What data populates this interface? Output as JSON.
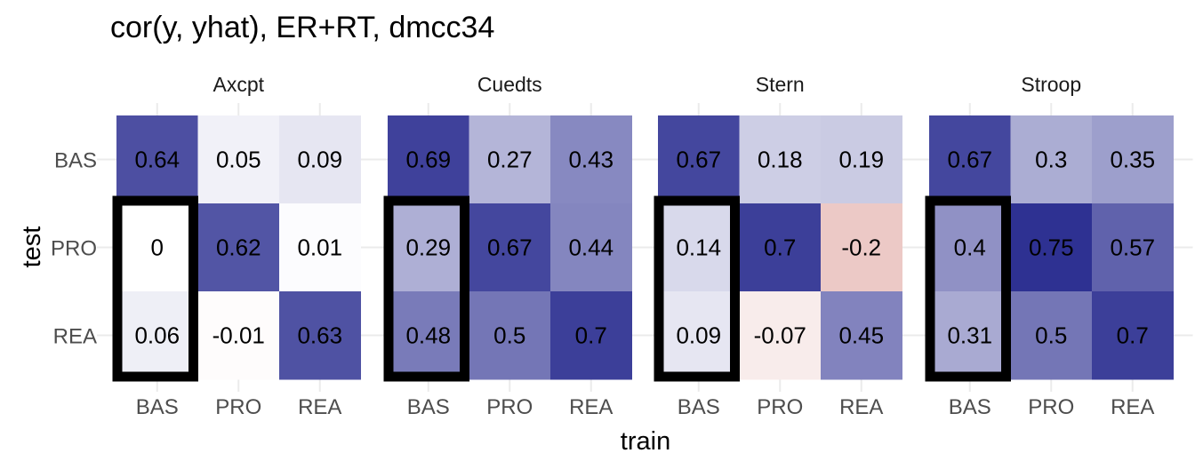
{
  "chart_data": {
    "type": "heatmap",
    "title": "cor(y, yhat), ER+RT, dmcc34",
    "xlabel": "train",
    "ylabel": "test",
    "x_categories": [
      "BAS",
      "PRO",
      "REA"
    ],
    "y_categories": [
      "BAS",
      "PRO",
      "REA"
    ],
    "color_range": [
      -0.75,
      0.75
    ],
    "colors": {
      "high": "#2e3192",
      "mid": "#ffffff",
      "low": "#b7332a"
    },
    "highlight": {
      "column": "BAS",
      "rows": [
        "PRO",
        "REA"
      ]
    },
    "panels": [
      {
        "name": "Axcpt",
        "values": [
          [
            0.64,
            0.05,
            0.09
          ],
          [
            0,
            0.62,
            0.01
          ],
          [
            0.06,
            -0.01,
            0.63
          ]
        ],
        "labels": [
          [
            "0.64",
            "0.05",
            "0.09"
          ],
          [
            "0",
            "0.62",
            "0.01"
          ],
          [
            "0.06",
            "-0.01",
            "0.63"
          ]
        ]
      },
      {
        "name": "Cuedts",
        "values": [
          [
            0.69,
            0.27,
            0.43
          ],
          [
            0.29,
            0.67,
            0.44
          ],
          [
            0.48,
            0.5,
            0.7
          ]
        ],
        "labels": [
          [
            "0.69",
            "0.27",
            "0.43"
          ],
          [
            "0.29",
            "0.67",
            "0.44"
          ],
          [
            "0.48",
            "0.5",
            "0.7"
          ]
        ]
      },
      {
        "name": "Stern",
        "values": [
          [
            0.67,
            0.18,
            0.19
          ],
          [
            0.14,
            0.7,
            -0.2
          ],
          [
            0.09,
            -0.07,
            0.45
          ]
        ],
        "labels": [
          [
            "0.67",
            "0.18",
            "0.19"
          ],
          [
            "0.14",
            "0.7",
            "-0.2"
          ],
          [
            "0.09",
            "-0.07",
            "0.45"
          ]
        ]
      },
      {
        "name": "Stroop",
        "values": [
          [
            0.67,
            0.3,
            0.35
          ],
          [
            0.4,
            0.75,
            0.57
          ],
          [
            0.31,
            0.5,
            0.7
          ]
        ],
        "labels": [
          [
            "0.67",
            "0.3",
            "0.35"
          ],
          [
            "0.4",
            "0.75",
            "0.57"
          ],
          [
            "0.31",
            "0.5",
            "0.7"
          ]
        ]
      }
    ]
  }
}
